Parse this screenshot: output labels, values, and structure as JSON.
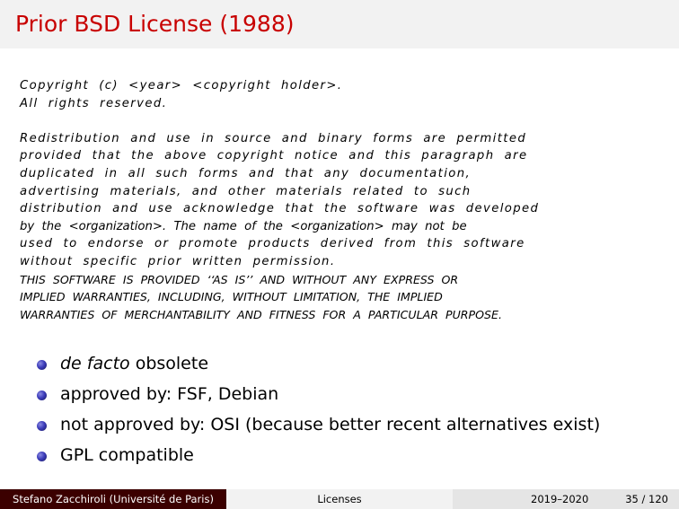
{
  "slide": {
    "title": "Prior BSD License (1988)"
  },
  "license_text": {
    "line_01": "Copyright  (c)  <year>  <copyright  holder>.",
    "line_02": "All  rights  reserved.",
    "line_03": "Redistribution  and  use  in  source  and  binary  forms  are  permitted",
    "line_04": "provided  that  the  above  copyright  notice  and  this  paragraph  are",
    "line_05": "duplicated  in  all  such  forms  and  that  any  documentation,",
    "line_06": "advertising  materials,  and  other  materials  related  to  such",
    "line_07": "distribution  and  use  acknowledge  that  the  software  was  developed",
    "line_08": "by  the  <organization>.  The  name  of  the  <organization>  may  not  be",
    "line_09": "used  to  endorse  or  promote  products  derived  from  this  software",
    "line_10": "without  specific  prior  written  permission.",
    "line_11": "THIS  SOFTWARE  IS  PROVIDED  ‘‘AS  IS’’  AND  WITHOUT  ANY  EXPRESS  OR",
    "line_12": "IMPLIED  WARRANTIES,  INCLUDING,  WITHOUT  LIMITATION,  THE  IMPLIED",
    "line_13": "WARRANTIES  OF  MERCHANTABILITY  AND  FITNESS  FOR  A  PARTICULAR  PURPOSE."
  },
  "bullets": {
    "item_1_emphasis": "de facto",
    "item_1_rest": " obsolete",
    "item_2": "approved by: FSF, Debian",
    "item_3": "not approved by: OSI (because better recent alternatives exist)",
    "item_4": "GPL compatible"
  },
  "footer": {
    "author": "Stefano Zacchiroli  (Université de Paris)",
    "section": "Licenses",
    "year": "2019–2020",
    "page": "35 / 120"
  },
  "colors": {
    "title": "#c80000",
    "title_bar": "#f2f2f2",
    "footer_author_bg": "#3b0000",
    "bullet": "#3d3dbb"
  },
  "icons": {
    "bullet": "bullet-ball-icon"
  }
}
